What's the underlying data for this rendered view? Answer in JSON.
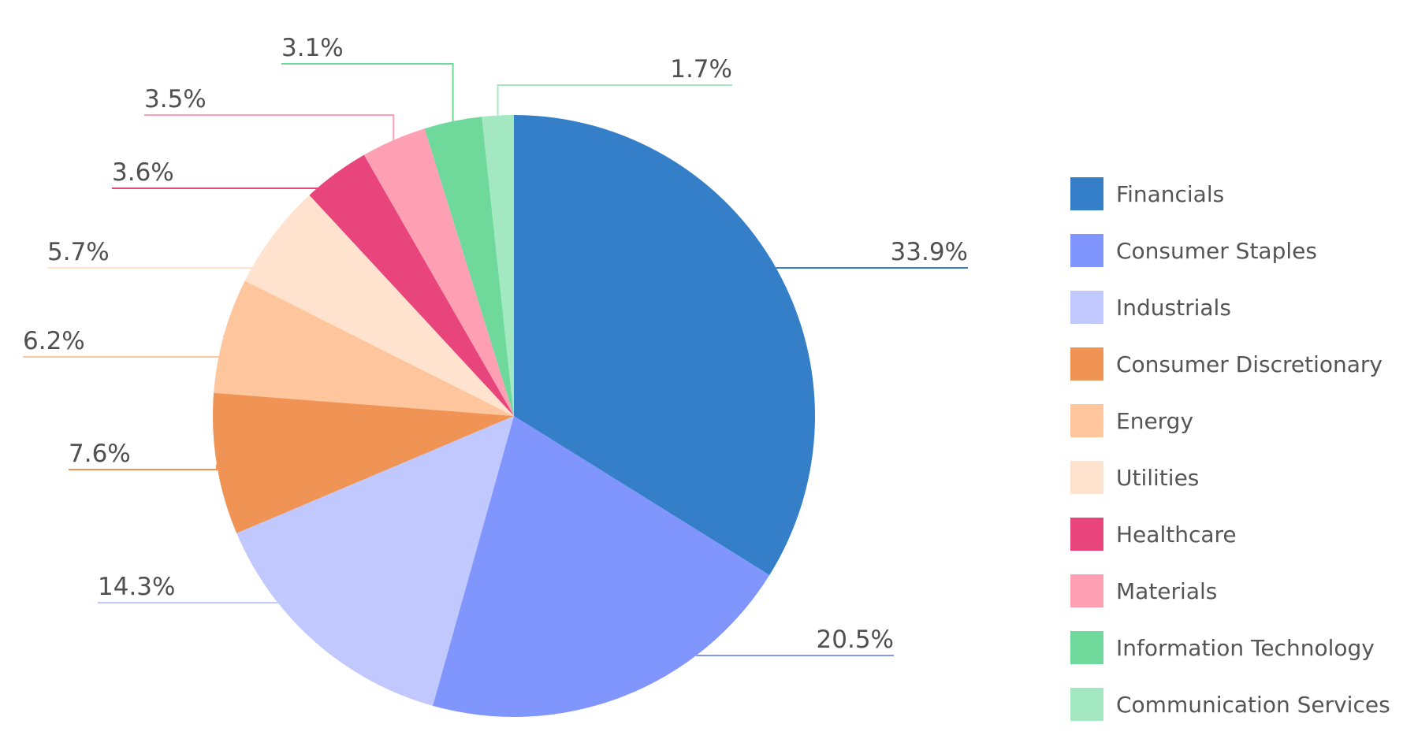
{
  "chart_data": {
    "type": "pie",
    "start_angle_deg": 0,
    "direction": "clockwise",
    "slices": [
      {
        "name": "Financials",
        "value": 33.9,
        "label": "33.9%",
        "color": "#347FC8"
      },
      {
        "name": "Consumer Staples",
        "value": 20.5,
        "label": "20.5%",
        "color": "#8096FD"
      },
      {
        "name": "Industrials",
        "value": 14.3,
        "label": "14.3%",
        "color": "#C0C8FE"
      },
      {
        "name": "Consumer Discretionary",
        "value": 7.6,
        "label": "7.6%",
        "color": "#F09455"
      },
      {
        "name": "Energy",
        "value": 6.2,
        "label": "6.2%",
        "color": "#FFC59C"
      },
      {
        "name": "Utilities",
        "value": 5.7,
        "label": "5.7%",
        "color": "#FFE3CE"
      },
      {
        "name": "Healthcare",
        "value": 3.6,
        "label": "3.6%",
        "color": "#E8457C"
      },
      {
        "name": "Materials",
        "value": 3.5,
        "label": "3.5%",
        "color": "#FF9FB3"
      },
      {
        "name": "Information Technology",
        "value": 3.1,
        "label": "3.1%",
        "color": "#6ED99A"
      },
      {
        "name": "Communication Services",
        "value": 1.7,
        "label": "1.7%",
        "color": "#A4E8C2"
      }
    ],
    "legend": {
      "position": "right",
      "entries": [
        "Financials",
        "Consumer Staples",
        "Industrials",
        "Consumer Discretionary",
        "Energy",
        "Utilities",
        "Healthcare",
        "Materials",
        "Information Technology",
        "Communication Services"
      ]
    }
  }
}
